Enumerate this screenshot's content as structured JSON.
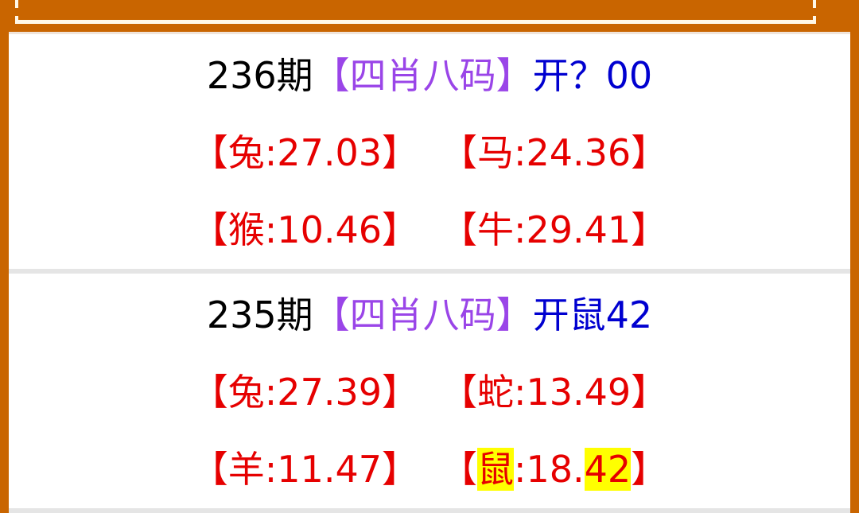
{
  "colors": {
    "frame": "#c96500",
    "issue": "#000000",
    "tag": "#9a45e8",
    "result": "#0000d0",
    "item": "#e60000",
    "highlight": "#ffff00"
  },
  "blocks": [
    {
      "issue": "236期",
      "tag": "【四肖八码】",
      "result": "开？00",
      "items": [
        {
          "open": "【",
          "zodiac": "兔",
          "sep": ":",
          "num_a": "27.",
          "num_b": "03",
          "close": "】",
          "hl_zodiac": false,
          "hl_num": false
        },
        {
          "open": "【",
          "zodiac": "马",
          "sep": ":",
          "num_a": "24.",
          "num_b": "36",
          "close": "】",
          "hl_zodiac": false,
          "hl_num": false
        },
        {
          "open": "【",
          "zodiac": "猴",
          "sep": ":",
          "num_a": "10.",
          "num_b": "46",
          "close": "】",
          "hl_zodiac": false,
          "hl_num": false
        },
        {
          "open": "【",
          "zodiac": "牛",
          "sep": ":",
          "num_a": "29.",
          "num_b": "41",
          "close": "】",
          "hl_zodiac": false,
          "hl_num": false
        }
      ]
    },
    {
      "issue": "235期",
      "tag": "【四肖八码】",
      "result": "开鼠42",
      "items": [
        {
          "open": "【",
          "zodiac": "兔",
          "sep": ":",
          "num_a": "27.",
          "num_b": "39",
          "close": "】",
          "hl_zodiac": false,
          "hl_num": false
        },
        {
          "open": "【",
          "zodiac": "蛇",
          "sep": ":",
          "num_a": "13.",
          "num_b": "49",
          "close": "】",
          "hl_zodiac": false,
          "hl_num": false
        },
        {
          "open": "【",
          "zodiac": "羊",
          "sep": ":",
          "num_a": "11.",
          "num_b": "47",
          "close": "】",
          "hl_zodiac": false,
          "hl_num": false
        },
        {
          "open": "【",
          "zodiac": "鼠",
          "sep": ":",
          "num_a": "18.",
          "num_b": "42",
          "close": "】",
          "hl_zodiac": true,
          "hl_num": true
        }
      ]
    }
  ]
}
